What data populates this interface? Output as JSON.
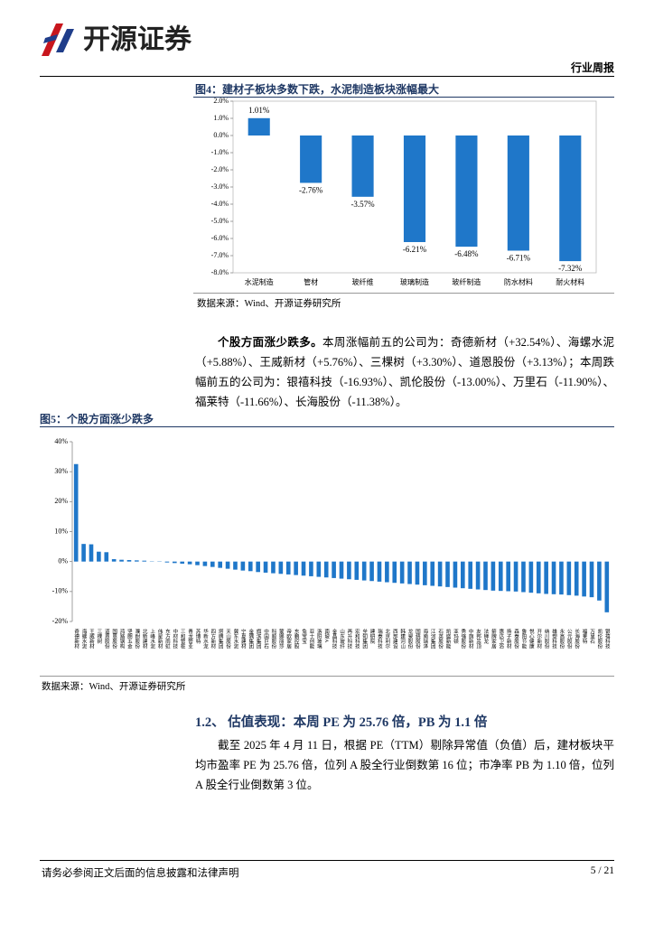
{
  "header": {
    "logo": "开源证券",
    "report_type": "行业周报"
  },
  "chart_data": [
    {
      "type": "bar",
      "title": "图4：建材子板块多数下跌，水泥制造板块涨幅最大",
      "source": "数据来源：Wind、开源证券研究所",
      "categories": [
        "水泥制造",
        "管材",
        "玻纤维",
        "玻璃制造",
        "玻纤制造",
        "防水材料",
        "耐火材料"
      ],
      "values": [
        1.01,
        -2.76,
        -3.57,
        -6.21,
        -6.48,
        -6.71,
        -7.32
      ],
      "value_labels": [
        "1.01%",
        "-2.76%",
        "-3.57%",
        "-6.21%",
        "-6.48%",
        "-6.71%",
        "-7.32%"
      ],
      "color": "#1f77c9",
      "grid": false,
      "ylim": [
        -8,
        2
      ],
      "yticks": [
        {
          "value": 2,
          "label": "2.0%"
        },
        {
          "value": 1,
          "label": "1.0%"
        },
        {
          "value": 0,
          "label": "0.0%"
        },
        {
          "value": -1,
          "label": "-1.0%"
        },
        {
          "value": -2,
          "label": "-2.0%"
        },
        {
          "value": -3,
          "label": "-3.0%"
        },
        {
          "value": -4,
          "label": "-4.0%"
        },
        {
          "value": -5,
          "label": "-5.0%"
        },
        {
          "value": -6,
          "label": "-6.0%"
        },
        {
          "value": -7,
          "label": "-7.0%"
        },
        {
          "value": -8,
          "label": "-8.0%"
        }
      ]
    },
    {
      "type": "bar",
      "title": "图5：个股方面涨少跌多",
      "source": "数据来源：Wind、开源证券研究所",
      "categories": [
        "奇德新材",
        "海螺水泥",
        "王威新材",
        "三棵树",
        "道恩股份",
        "国恩股份",
        "鸿路钢构",
        "坚朗五金",
        "濮耐股份",
        "北新建材",
        "上峰水泥",
        "伟星新材",
        "东方雨虹",
        "中材科技",
        "三和管桩",
        "青龙管业",
        "苏博特",
        "华新水泥",
        "四方新材",
        "塔牌集团",
        "天山股份",
        "冀东水泥",
        "宁夏建材",
        "金隅集团",
        "旗滨集团",
        "中国巨石",
        "科顺股份",
        "蒙娜丽莎",
        "帝欧家居",
        "东鹏控股",
        "兔宝宝",
        "亚士创能",
        "洛阳玻璃",
        "南玻A",
        "金晶科技",
        "山东玻纤",
        "再升科技",
        "宏和科技",
        "垒知集团",
        "建研院",
        "瑞泰科技",
        "北京利尔",
        "西部建设",
        "韩建河山",
        "龙泉股份",
        "国统股份",
        "海南瑞泽",
        "江河集团",
        "石英股份",
        "凯盛新能",
        "亚玛顿",
        "秀强股份",
        "中旗新材",
        "友邦吊顶",
        "法狮龙",
        "箭牌家居",
        "惠达卫浴",
        "扬子新材",
        "森泰股份",
        "鲁阳节能",
        "悦心健康",
        "开尔新材",
        "纳川股份",
        "雄塑科技",
        "永高股份",
        "公元股份",
        "长海股份",
        "福莱特",
        "万里石",
        "凯伦股份",
        "银禧科技"
      ],
      "values": [
        32.54,
        5.88,
        5.76,
        3.3,
        3.13,
        0.8,
        0.6,
        0.5,
        0.4,
        0.3,
        0.1,
        -0.1,
        -0.3,
        -0.5,
        -0.7,
        -0.9,
        -1.2,
        -1.5,
        -1.8,
        -2.1,
        -2.4,
        -2.7,
        -3.0,
        -3.2,
        -3.5,
        -3.7,
        -3.9,
        -4.1,
        -4.3,
        -4.5,
        -4.7,
        -4.9,
        -5.1,
        -5.3,
        -5.5,
        -5.7,
        -5.9,
        -6.1,
        -6.3,
        -6.5,
        -6.7,
        -6.9,
        -7.1,
        -7.3,
        -7.5,
        -7.7,
        -7.9,
        -8.1,
        -8.3,
        -8.5,
        -8.7,
        -8.9,
        -9.1,
        -9.3,
        -9.5,
        -9.7,
        -9.8,
        -9.9,
        -10.0,
        -10.2,
        -10.4,
        -10.6,
        -10.8,
        -10.9,
        -11.0,
        -11.2,
        -11.38,
        -11.66,
        -11.9,
        -13.0,
        -16.93
      ],
      "color": "#1f77c9",
      "grid": false,
      "ylim": [
        -20,
        40
      ],
      "yticks": [
        {
          "value": 40,
          "label": "40%"
        },
        {
          "value": 30,
          "label": "30%"
        },
        {
          "value": 20,
          "label": "20%"
        },
        {
          "value": 10,
          "label": "10%"
        },
        {
          "value": 0,
          "label": "0%"
        },
        {
          "value": -10,
          "label": "-10%"
        },
        {
          "value": -20,
          "label": "-20%"
        }
      ]
    }
  ],
  "body": {
    "paragraph1": {
      "lead": "个股方面涨少跌多。",
      "text": "本周涨幅前五的公司为：奇德新材（+32.54%）、海螺水泥（+5.88%）、王威新材（+5.76%）、三棵树（+3.30%）、道恩股份（+3.13%）；本周跌幅前五的公司为：银禧科技（-16.93%）、凯伦股份（-13.00%）、万里石（-11.90%）、福莱特（-11.66%）、长海股份（-11.38%）。"
    },
    "section_heading": "1.2、 估值表现：本周 PE 为 25.76 倍，PB 为 1.1 倍",
    "paragraph2": "截至 2025 年 4 月 11 日，根据 PE（TTM）剔除异常值（负值）后，建材板块平均市盈率 PE 为 25.76 倍，位列 A 股全行业倒数第 16 位；市净率 PB 为 1.10 倍，位列 A 股全行业倒数第 3 位。"
  },
  "footer": {
    "disclaimer": "请务必参阅正文后面的信息披露和法律声明",
    "page": "5 / 21"
  }
}
